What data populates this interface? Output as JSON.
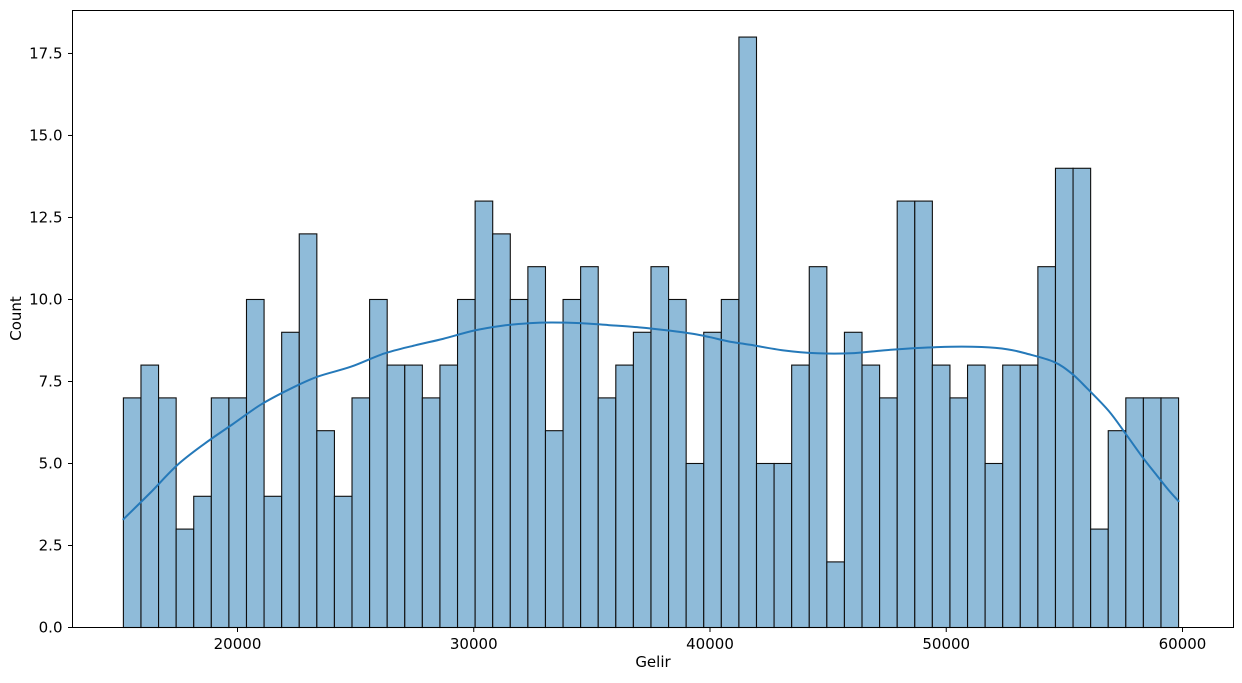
{
  "chart_data": {
    "type": "bar",
    "subtype": "histogram_with_kde",
    "title": "",
    "xlabel": "Gelir",
    "ylabel": "Count",
    "grid": false,
    "legend_position": "none",
    "xlim": [
      13016,
      62159
    ],
    "ylim": [
      0,
      18.81
    ],
    "xticks": {
      "values": [
        20000,
        30000,
        40000,
        50000,
        60000
      ],
      "labels": [
        "20000",
        "30000",
        "40000",
        "50000",
        "60000"
      ]
    },
    "yticks": {
      "values": [
        0,
        2.5,
        5,
        7.5,
        10,
        12.5,
        15,
        17.5
      ],
      "labels": [
        "0.0",
        "2.5",
        "5.0",
        "7.5",
        "10.0",
        "12.5",
        "15.0",
        "17.5"
      ]
    },
    "bins": {
      "start": 15170,
      "width": 744.4,
      "count": 60,
      "end": 59834
    },
    "counts": [
      7,
      8,
      7,
      3,
      4,
      7,
      7,
      10,
      4,
      9,
      12,
      6,
      4,
      7,
      10,
      8,
      8,
      7,
      8,
      10,
      13,
      12,
      10,
      11,
      6,
      10,
      11,
      7,
      8,
      9,
      11,
      10,
      5,
      9,
      10,
      18,
      5,
      5,
      8,
      11,
      2,
      9,
      8,
      7,
      13,
      13,
      8,
      7,
      8,
      5,
      8,
      8,
      11,
      14,
      14,
      3,
      6,
      7,
      7,
      7
    ],
    "kde": [
      [
        15170,
        3.3
      ],
      [
        16300,
        4.1
      ],
      [
        17450,
        4.95
      ],
      [
        18600,
        5.6
      ],
      [
        19800,
        6.2
      ],
      [
        21000,
        6.8
      ],
      [
        22300,
        7.3
      ],
      [
        23400,
        7.65
      ],
      [
        24800,
        7.95
      ],
      [
        26200,
        8.35
      ],
      [
        27500,
        8.6
      ],
      [
        28700,
        8.8
      ],
      [
        30000,
        9.05
      ],
      [
        31200,
        9.2
      ],
      [
        32400,
        9.28
      ],
      [
        33300,
        9.3
      ],
      [
        34500,
        9.28
      ],
      [
        35700,
        9.22
      ],
      [
        37000,
        9.15
      ],
      [
        38300,
        9.05
      ],
      [
        39300,
        8.95
      ],
      [
        40000,
        8.85
      ],
      [
        40800,
        8.72
      ],
      [
        41700,
        8.62
      ],
      [
        43100,
        8.45
      ],
      [
        44550,
        8.36
      ],
      [
        45950,
        8.36
      ],
      [
        47350,
        8.45
      ],
      [
        48800,
        8.52
      ],
      [
        50200,
        8.56
      ],
      [
        51500,
        8.55
      ],
      [
        52600,
        8.48
      ],
      [
        53400,
        8.35
      ],
      [
        54550,
        8.1
      ],
      [
        55300,
        7.75
      ],
      [
        55950,
        7.3
      ],
      [
        56880,
        6.6
      ],
      [
        57600,
        5.9
      ],
      [
        58300,
        5.2
      ],
      [
        58900,
        4.65
      ],
      [
        59400,
        4.2
      ],
      [
        59834,
        3.85
      ]
    ],
    "colors": {
      "bar_fill": "#8fbbd9",
      "bar_edge": "#0e0e0e",
      "kde_line": "#2579b9",
      "axis": "#000000",
      "text": "#000000",
      "background": "#ffffff"
    }
  }
}
